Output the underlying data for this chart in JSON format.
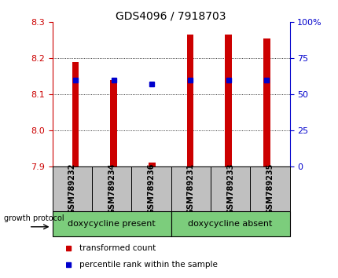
{
  "title": "GDS4096 / 7918703",
  "samples": [
    "GSM789232",
    "GSM789234",
    "GSM789236",
    "GSM789231",
    "GSM789233",
    "GSM789235"
  ],
  "red_bar_top": [
    8.19,
    8.14,
    7.912,
    8.265,
    8.265,
    8.255
  ],
  "red_bar_bottom": 7.9,
  "blue_marker_y": [
    8.14,
    8.14,
    8.13,
    8.14,
    8.14,
    8.14
  ],
  "ylim_left": [
    7.9,
    8.3
  ],
  "ylim_right": [
    0,
    100
  ],
  "yticks_left": [
    7.9,
    8.0,
    8.1,
    8.2,
    8.3
  ],
  "yticks_right": [
    0,
    25,
    50,
    75,
    100
  ],
  "ytick_labels_right": [
    "0",
    "25",
    "50",
    "75",
    "100%"
  ],
  "red_color": "#CC0000",
  "blue_color": "#0000CC",
  "group1_label": "doxycycline present",
  "group2_label": "doxycycline absent",
  "group_color": "#7CCD7C",
  "label_bg_color": "#C0C0C0",
  "legend_red": "transformed count",
  "legend_blue": "percentile rank within the sample",
  "growth_protocol_label": "growth protocol",
  "x_positions": [
    0,
    1,
    2,
    3,
    4,
    5
  ],
  "bar_width": 0.18
}
